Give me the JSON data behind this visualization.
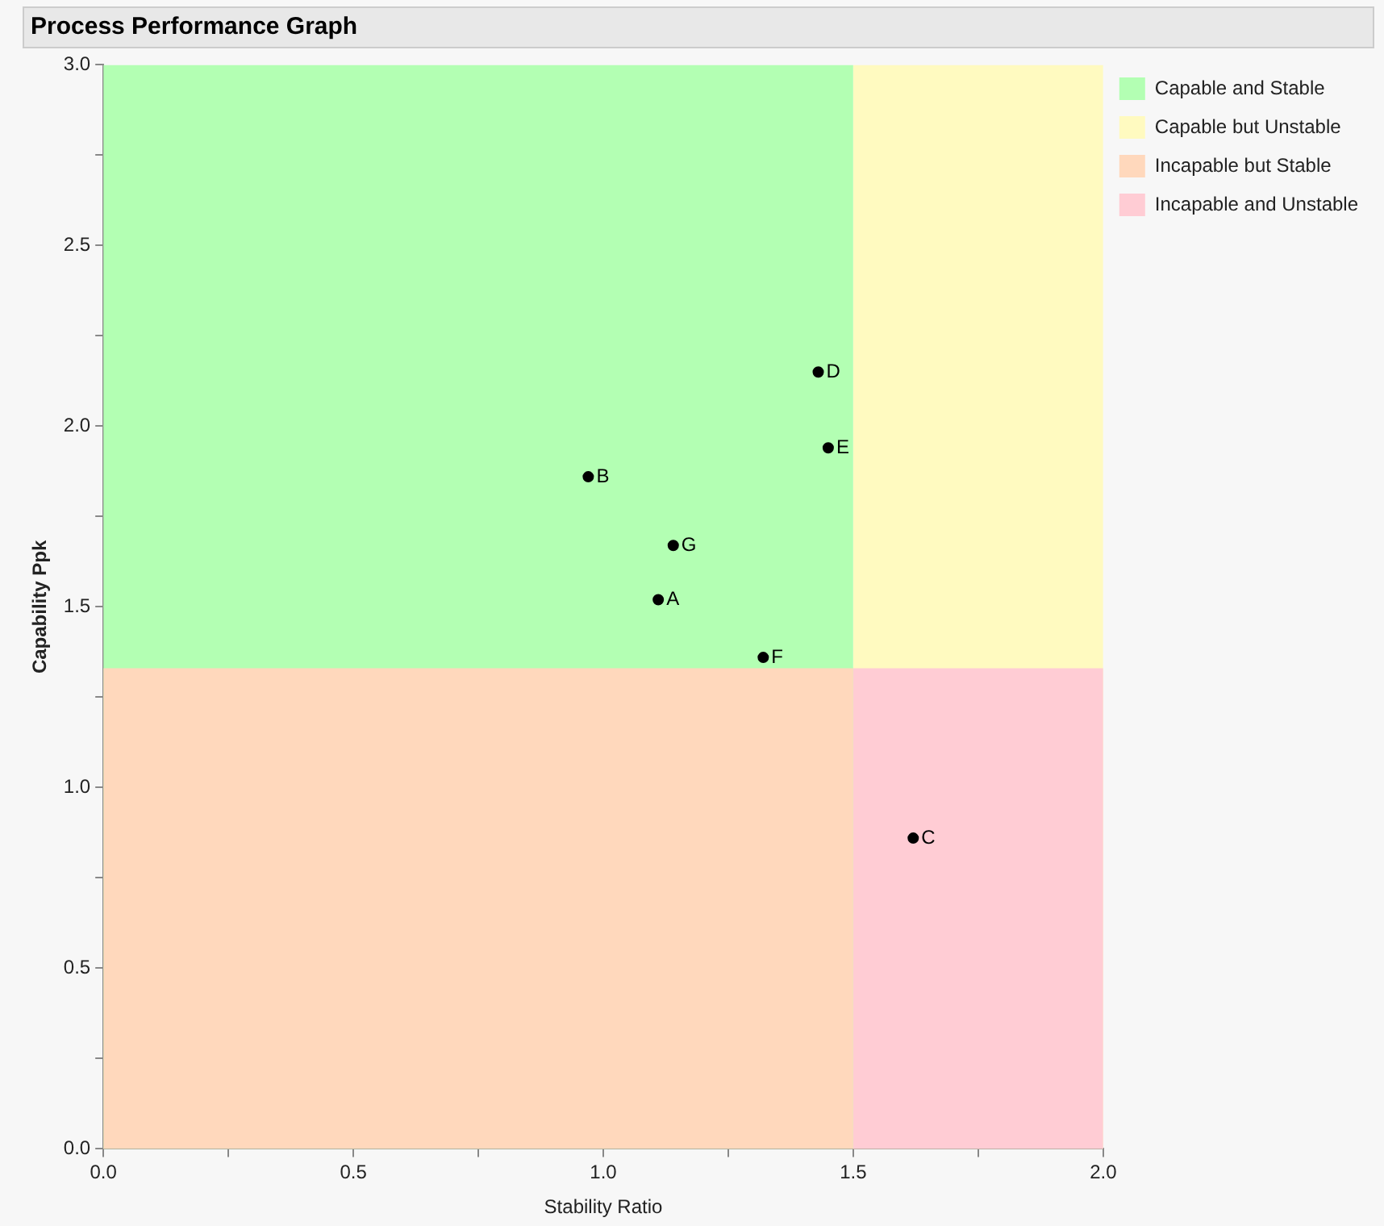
{
  "chart_data": {
    "type": "scatter",
    "title": "Process Performance Graph",
    "xlabel": "Stability Ratio",
    "ylabel": "Capability Ppk",
    "xlim": [
      0,
      2
    ],
    "ylim": [
      0,
      3
    ],
    "xticks": [
      {
        "value": 0,
        "label": "0.0"
      },
      {
        "value": 0.25,
        "label": null
      },
      {
        "value": 0.5,
        "label": "0.5"
      },
      {
        "value": 0.75,
        "label": null
      },
      {
        "value": 1,
        "label": "1.0"
      },
      {
        "value": 1.25,
        "label": null
      },
      {
        "value": 1.5,
        "label": "1.5"
      },
      {
        "value": 1.75,
        "label": null
      },
      {
        "value": 2,
        "label": "2.0"
      }
    ],
    "yticks": [
      {
        "value": 0,
        "label": "0.0"
      },
      {
        "value": 0.25,
        "label": null
      },
      {
        "value": 0.5,
        "label": "0.5"
      },
      {
        "value": 0.75,
        "label": null
      },
      {
        "value": 1,
        "label": "1.0"
      },
      {
        "value": 1.25,
        "label": null
      },
      {
        "value": 1.5,
        "label": "1.5"
      },
      {
        "value": 1.75,
        "label": null
      },
      {
        "value": 2,
        "label": "2.0"
      },
      {
        "value": 2.25,
        "label": null
      },
      {
        "value": 2.5,
        "label": "2.5"
      },
      {
        "value": 2.75,
        "label": null
      },
      {
        "value": 3,
        "label": "3.0"
      }
    ],
    "grid": false,
    "legend": "top right",
    "series": [
      {
        "name": "Capable and Stable",
        "type": "area",
        "color": "#b3ffb3",
        "x": [
          0,
          1.5
        ],
        "values": [
          3,
          3
        ]
      },
      {
        "name": "Capable but Unstable",
        "type": "area",
        "color": "#fffac0",
        "x": [
          1.5,
          2
        ],
        "values": [
          3,
          3
        ]
      },
      {
        "name": "Incapable but Stable",
        "type": "area",
        "color": "#ffd8bc",
        "x": [
          0,
          1.5
        ],
        "values": [
          1.33,
          1.33
        ]
      },
      {
        "name": "Incapable and Unstable",
        "type": "area",
        "color": "#ffccd4",
        "x": [
          1.5,
          2
        ],
        "values": [
          1.33,
          1.33
        ]
      },
      {
        "color": "#000000",
        "x": [
          1.11,
          0.97,
          1.62,
          1.43,
          1.45,
          1.32,
          1.14
        ],
        "values": [
          1.52,
          1.86,
          0.86,
          2.15,
          1.94,
          1.36,
          1.67
        ]
      }
    ],
    "annotations": [
      {
        "text": "A",
        "x": 1.11,
        "y": 1.52
      },
      {
        "text": "B",
        "x": 0.97,
        "y": 1.86
      },
      {
        "text": "C",
        "x": 1.62,
        "y": 0.86
      },
      {
        "text": "D",
        "x": 1.43,
        "y": 2.15
      },
      {
        "text": "E",
        "x": 1.45,
        "y": 1.94
      },
      {
        "text": "F",
        "x": 1.32,
        "y": 1.36
      },
      {
        "text": "G",
        "x": 1.14,
        "y": 1.67
      }
    ]
  }
}
